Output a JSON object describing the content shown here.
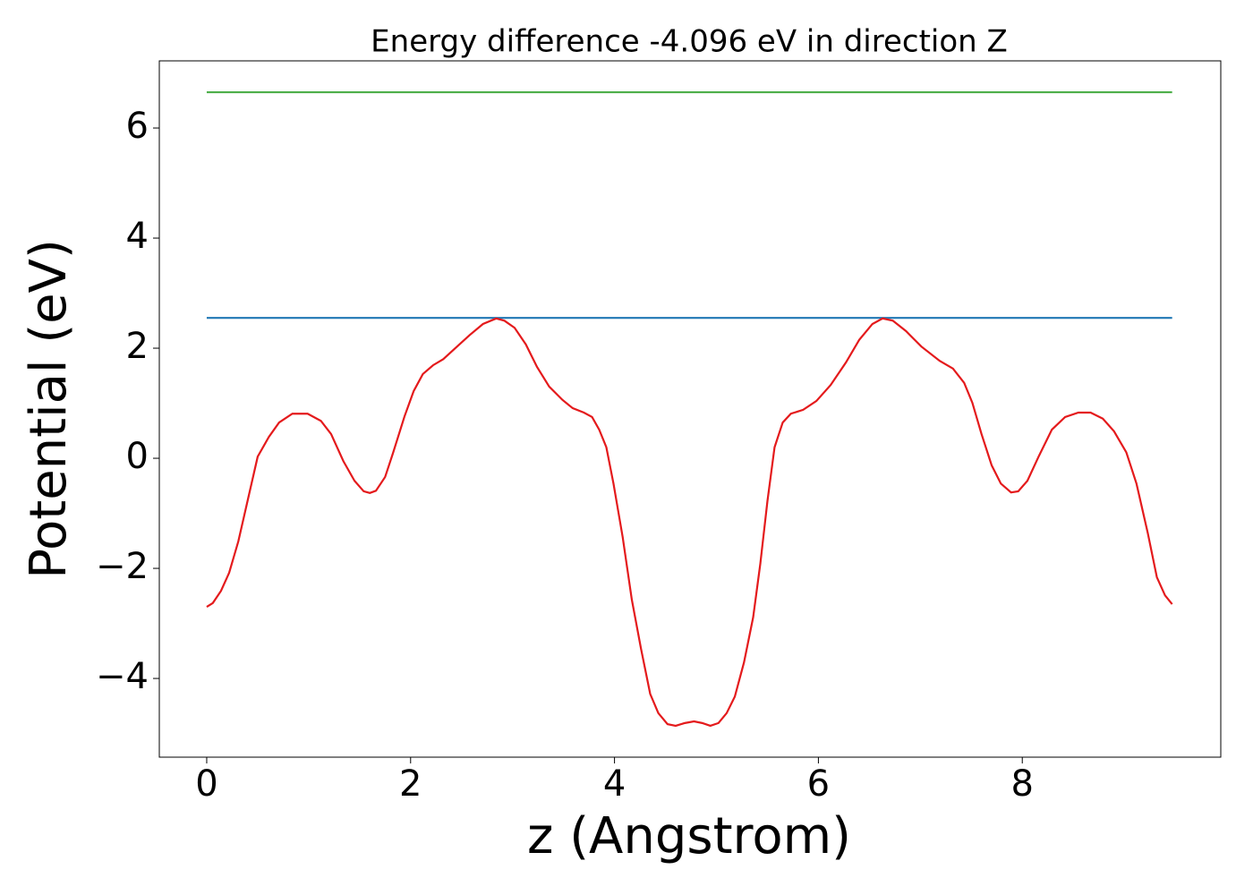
{
  "chart_data": {
    "type": "line",
    "title": "Energy difference -4.096 eV in direction Z",
    "x_label": "z (Angstrom)",
    "y_label": "Potential (eV)",
    "xlim": [
      -0.465,
      9.947
    ],
    "ylim": [
      -5.43,
      7.22
    ],
    "xticks": [
      0,
      2,
      4,
      6,
      8
    ],
    "yticks": [
      {
        "value": -4,
        "label": "−4"
      },
      {
        "value": -2,
        "label": "−2"
      },
      0,
      2,
      4,
      6
    ],
    "grid": false,
    "series": [
      {
        "color": "#4daf4a",
        "x": [
          0,
          9.47
        ],
        "values": [
          6.65,
          6.65
        ]
      },
      {
        "color": "#1f77b4",
        "x": [
          0,
          9.47
        ],
        "values": [
          2.55,
          2.55
        ]
      },
      {
        "color": "#e41a1c",
        "x": [
          0,
          0.06,
          0.14,
          0.22,
          0.31,
          0.4,
          0.5,
          0.61,
          0.71,
          0.84,
          0.99,
          1.12,
          1.22,
          1.34,
          1.45,
          1.54,
          1.6,
          1.66,
          1.75,
          1.83,
          1.94,
          2.03,
          2.12,
          2.22,
          2.32,
          2.45,
          2.58,
          2.71,
          2.84,
          2.92,
          3.02,
          3.13,
          3.24,
          3.36,
          3.49,
          3.59,
          3.7,
          3.78,
          3.85,
          3.92,
          3.99,
          4.08,
          4.17,
          4.26,
          4.35,
          4.43,
          4.52,
          4.6,
          4.69,
          4.78,
          4.86,
          4.94,
          5.02,
          5.1,
          5.18,
          5.27,
          5.36,
          5.43,
          5.5,
          5.57,
          5.65,
          5.73,
          5.85,
          5.98,
          6.12,
          6.27,
          6.4,
          6.53,
          6.63,
          6.73,
          6.86,
          7.01,
          7.19,
          7.32,
          7.43,
          7.51,
          7.6,
          7.7,
          7.79,
          7.89,
          7.96,
          8.05,
          8.16,
          8.29,
          8.42,
          8.55,
          8.67,
          8.79,
          8.9,
          9.02,
          9.12,
          9.23,
          9.32,
          9.4,
          9.47
        ],
        "values": [
          -2.7,
          -2.63,
          -2.41,
          -2.08,
          -1.51,
          -0.78,
          0.03,
          0.39,
          0.65,
          0.81,
          0.81,
          0.68,
          0.44,
          -0.05,
          -0.41,
          -0.6,
          -0.63,
          -0.59,
          -0.34,
          0.11,
          0.76,
          1.22,
          1.53,
          1.69,
          1.8,
          2.02,
          2.24,
          2.44,
          2.54,
          2.5,
          2.37,
          2.07,
          1.66,
          1.3,
          1.06,
          0.91,
          0.83,
          0.75,
          0.52,
          0.2,
          -0.46,
          -1.43,
          -2.57,
          -3.46,
          -4.28,
          -4.63,
          -4.83,
          -4.86,
          -4.81,
          -4.78,
          -4.81,
          -4.86,
          -4.81,
          -4.63,
          -4.33,
          -3.71,
          -2.89,
          -1.92,
          -0.78,
          0.2,
          0.65,
          0.81,
          0.88,
          1.04,
          1.33,
          1.74,
          2.15,
          2.44,
          2.54,
          2.5,
          2.31,
          2.03,
          1.77,
          1.63,
          1.37,
          1.01,
          0.44,
          -0.13,
          -0.46,
          -0.62,
          -0.6,
          -0.41,
          0.03,
          0.52,
          0.75,
          0.83,
          0.83,
          0.72,
          0.49,
          0.11,
          -0.46,
          -1.35,
          -2.16,
          -2.49,
          -2.65
        ]
      }
    ]
  }
}
